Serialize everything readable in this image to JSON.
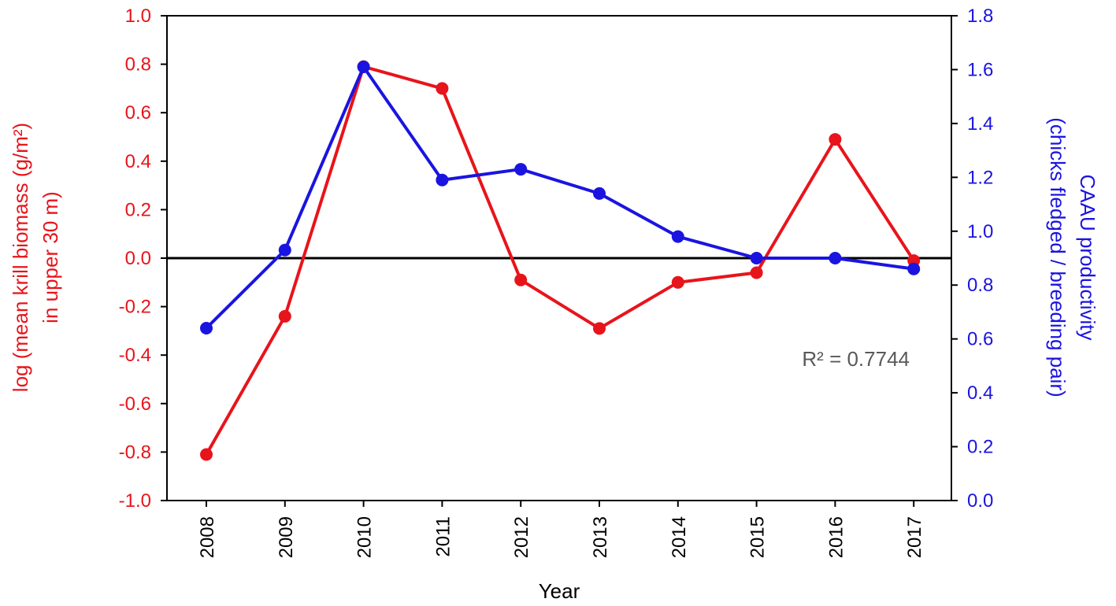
{
  "chart_data": {
    "type": "line",
    "categories": [
      "2008",
      "2009",
      "2010",
      "2011",
      "2012",
      "2013",
      "2014",
      "2015",
      "2016",
      "2017"
    ],
    "xlabel": "Year",
    "y_left": {
      "label_line1": "log (mean krill biomass (g/m²)",
      "label_line2": "in upper 30 m)",
      "ylim": [
        -1.0,
        1.0
      ],
      "ticks": [
        "-1.0",
        "-0.8",
        "-0.6",
        "-0.4",
        "-0.2",
        "0.0",
        "0.2",
        "0.4",
        "0.6",
        "0.8",
        "1.0"
      ],
      "color": "#e8141b"
    },
    "y_right": {
      "label_line1": "CAAU productivity",
      "label_line2": "(chicks fledged / breeding pair)",
      "ylim": [
        0.0,
        1.8
      ],
      "ticks": [
        "0.0",
        "0.2",
        "0.4",
        "0.6",
        "0.8",
        "1.0",
        "1.2",
        "1.4",
        "1.6",
        "1.8"
      ],
      "color": "#1a14e0"
    },
    "series": [
      {
        "axis": "left",
        "color": "#e8141b",
        "values": [
          -0.81,
          -0.24,
          0.79,
          0.7,
          -0.09,
          -0.29,
          -0.1,
          -0.06,
          0.49,
          -0.01
        ]
      },
      {
        "axis": "right",
        "color": "#1a14e0",
        "values": [
          0.64,
          0.93,
          1.61,
          1.19,
          1.23,
          1.14,
          0.98,
          0.9,
          0.9,
          0.86
        ]
      }
    ],
    "reference_line": {
      "axis": "left",
      "value": 0.0,
      "color": "#000000"
    },
    "annotation": "R² = 0.7744",
    "grid": false
  }
}
